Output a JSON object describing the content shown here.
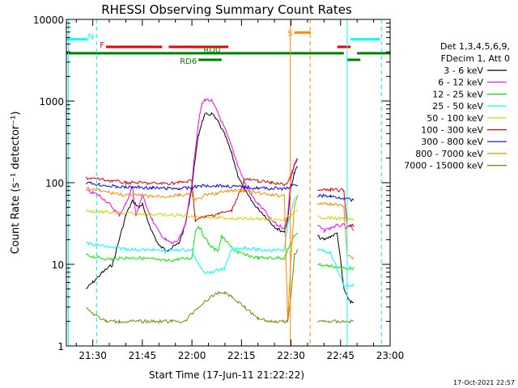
{
  "chart_data": {
    "type": "line",
    "title": "RHESSI Observing Summary Count Rates",
    "xlabel": "Start Time (17-Jun-11 21:22:22)",
    "ylabel": "Count Rate (s⁻¹ detector⁻¹)",
    "x_unit": "minutes after 21:00 UT",
    "xlim": [
      22,
      120
    ],
    "x_ticks": [
      {
        "x": 30,
        "label": "21:30"
      },
      {
        "x": 45,
        "label": "21:45"
      },
      {
        "x": 60,
        "label": "22:00"
      },
      {
        "x": 75,
        "label": "22:15"
      },
      {
        "x": 90,
        "label": "22:30"
      },
      {
        "x": 105,
        "label": "22:45"
      },
      {
        "x": 120,
        "label": "23:00"
      }
    ],
    "y_scale": "log",
    "ylim": [
      1,
      10000
    ],
    "y_ticks": [
      {
        "y": 1,
        "label": "1"
      },
      {
        "y": 10,
        "label": "10"
      },
      {
        "y": 100,
        "label": "100"
      },
      {
        "y": 1000,
        "label": "1000"
      },
      {
        "y": 10000,
        "label": "10000"
      }
    ],
    "legend_header": [
      "Det 1,3,4,5,6,9,",
      "FDecim 1, Att 0"
    ],
    "legend_position": "right",
    "footer_date": "17-Oct-2021 22:57",
    "series": [
      {
        "name": "3 - 6 keV",
        "color": "#000000",
        "points": [
          [
            28,
            5
          ],
          [
            30,
            6
          ],
          [
            33,
            8
          ],
          [
            36,
            10
          ],
          [
            38,
            20
          ],
          [
            40,
            40
          ],
          [
            42,
            60
          ],
          [
            44,
            50
          ],
          [
            45,
            55
          ],
          [
            46,
            40
          ],
          [
            48,
            25
          ],
          [
            50,
            17
          ],
          [
            52,
            15
          ],
          [
            54,
            16
          ],
          [
            56,
            18
          ],
          [
            58,
            30
          ],
          [
            60,
            90
          ],
          [
            61,
            200
          ],
          [
            62,
            380
          ],
          [
            63,
            550
          ],
          [
            64,
            680
          ],
          [
            66,
            700
          ],
          [
            68,
            550
          ],
          [
            70,
            380
          ],
          [
            72,
            230
          ],
          [
            74,
            120
          ],
          [
            76,
            80
          ],
          [
            78,
            60
          ],
          [
            80,
            48
          ],
          [
            82,
            40
          ],
          [
            84,
            32
          ],
          [
            86,
            27
          ],
          [
            88,
            25
          ],
          [
            89,
            35
          ],
          [
            90,
            90
          ],
          [
            91,
            130
          ],
          [
            92,
            160
          ],
          [
            98,
            22
          ],
          [
            100,
            20
          ],
          [
            102,
            22
          ],
          [
            104,
            24
          ],
          [
            106,
            5
          ],
          [
            107,
            4
          ],
          [
            108,
            3.5
          ],
          [
            109,
            3.3
          ]
        ]
      },
      {
        "name": "6 - 12 keV",
        "color": "#ff00ff",
        "points": [
          [
            28,
            80
          ],
          [
            30,
            75
          ],
          [
            32,
            70
          ],
          [
            35,
            55
          ],
          [
            38,
            40
          ],
          [
            40,
            55
          ],
          [
            42,
            90
          ],
          [
            43,
            40
          ],
          [
            45,
            70
          ],
          [
            48,
            35
          ],
          [
            50,
            25
          ],
          [
            52,
            20
          ],
          [
            54,
            18
          ],
          [
            56,
            20
          ],
          [
            58,
            30
          ],
          [
            60,
            100
          ],
          [
            61,
            250
          ],
          [
            62,
            550
          ],
          [
            63,
            900
          ],
          [
            64,
            1050
          ],
          [
            66,
            1000
          ],
          [
            68,
            700
          ],
          [
            70,
            450
          ],
          [
            72,
            280
          ],
          [
            74,
            160
          ],
          [
            76,
            100
          ],
          [
            78,
            70
          ],
          [
            80,
            55
          ],
          [
            82,
            45
          ],
          [
            84,
            35
          ],
          [
            86,
            30
          ],
          [
            88,
            28
          ],
          [
            89,
            40
          ],
          [
            90,
            120
          ],
          [
            91,
            170
          ],
          [
            92,
            190
          ],
          [
            98,
            30
          ],
          [
            100,
            26
          ],
          [
            102,
            28
          ],
          [
            104,
            30
          ],
          [
            106,
            30
          ],
          [
            107,
            28
          ],
          [
            108,
            30
          ],
          [
            109,
            25
          ]
        ]
      },
      {
        "name": "12 - 25 keV",
        "color": "#00ee00",
        "points": [
          [
            28,
            13
          ],
          [
            32,
            12
          ],
          [
            36,
            11.5
          ],
          [
            40,
            12
          ],
          [
            44,
            12
          ],
          [
            48,
            11.5
          ],
          [
            52,
            11
          ],
          [
            56,
            11.5
          ],
          [
            60,
            12
          ],
          [
            61,
            25
          ],
          [
            62,
            30
          ],
          [
            63,
            25
          ],
          [
            65,
            18
          ],
          [
            67,
            15
          ],
          [
            68,
            15
          ],
          [
            69,
            22
          ],
          [
            70,
            20
          ],
          [
            72,
            16
          ],
          [
            74,
            14
          ],
          [
            76,
            13
          ],
          [
            80,
            12
          ],
          [
            84,
            12
          ],
          [
            88,
            12
          ],
          [
            89,
            15
          ],
          [
            90,
            18
          ],
          [
            91,
            22
          ],
          [
            92,
            25
          ],
          [
            98,
            10
          ],
          [
            102,
            9.5
          ],
          [
            106,
            9
          ],
          [
            109,
            9
          ]
        ]
      },
      {
        "name": "25 - 50 keV",
        "color": "#00ffff",
        "points": [
          [
            28,
            18
          ],
          [
            32,
            17
          ],
          [
            36,
            16
          ],
          [
            40,
            15.5
          ],
          [
            44,
            15
          ],
          [
            48,
            15
          ],
          [
            52,
            14.5
          ],
          [
            56,
            15
          ],
          [
            60,
            15
          ],
          [
            61,
            12
          ],
          [
            62,
            10
          ],
          [
            63,
            9
          ],
          [
            64,
            8
          ],
          [
            66,
            8
          ],
          [
            68,
            8.5
          ],
          [
            70,
            9
          ],
          [
            72,
            15
          ],
          [
            76,
            16
          ],
          [
            80,
            15
          ],
          [
            84,
            15
          ],
          [
            88,
            15
          ],
          [
            89,
            30
          ],
          [
            90,
            45
          ],
          [
            91,
            60
          ],
          [
            92,
            70
          ],
          [
            98,
            15
          ],
          [
            102,
            14
          ],
          [
            106,
            5.5
          ],
          [
            109,
            5.5
          ]
        ]
      },
      {
        "name": "50 - 100 keV",
        "color": "#d4d400",
        "points": [
          [
            28,
            45
          ],
          [
            32,
            44
          ],
          [
            36,
            43
          ],
          [
            40,
            42
          ],
          [
            44,
            42
          ],
          [
            48,
            41
          ],
          [
            52,
            40
          ],
          [
            56,
            40
          ],
          [
            60,
            39
          ],
          [
            64,
            38
          ],
          [
            68,
            37
          ],
          [
            72,
            37
          ],
          [
            76,
            36
          ],
          [
            80,
            36
          ],
          [
            84,
            35
          ],
          [
            88,
            35
          ],
          [
            90,
            40
          ],
          [
            92,
            45
          ],
          [
            98,
            38
          ],
          [
            102,
            37
          ],
          [
            106,
            36
          ],
          [
            109,
            35
          ]
        ]
      },
      {
        "name": "100 - 300 keV",
        "color": "#dd0000",
        "points": [
          [
            28,
            115
          ],
          [
            32,
            110
          ],
          [
            36,
            105
          ],
          [
            40,
            100
          ],
          [
            44,
            100
          ],
          [
            48,
            98
          ],
          [
            52,
            98
          ],
          [
            56,
            100
          ],
          [
            60,
            105
          ],
          [
            61,
            35
          ],
          [
            64,
            38
          ],
          [
            68,
            42
          ],
          [
            72,
            45
          ],
          [
            76,
            110
          ],
          [
            80,
            105
          ],
          [
            84,
            100
          ],
          [
            88,
            95
          ],
          [
            89,
            100
          ],
          [
            90,
            120
          ],
          [
            91,
            160
          ],
          [
            92,
            200
          ],
          [
            98,
            80
          ],
          [
            102,
            82
          ],
          [
            106,
            80
          ],
          [
            107,
            30
          ],
          [
            109,
            30
          ]
        ]
      },
      {
        "name": "300 - 800 keV",
        "color": "#0000ee",
        "points": [
          [
            28,
            100
          ],
          [
            32,
            95
          ],
          [
            36,
            90
          ],
          [
            40,
            88
          ],
          [
            44,
            88
          ],
          [
            48,
            86
          ],
          [
            52,
            85
          ],
          [
            56,
            85
          ],
          [
            60,
            86
          ],
          [
            61,
            90
          ],
          [
            64,
            92
          ],
          [
            68,
            92
          ],
          [
            72,
            90
          ],
          [
            76,
            88
          ],
          [
            80,
            86
          ],
          [
            84,
            85
          ],
          [
            88,
            84
          ],
          [
            90,
            90
          ],
          [
            92,
            95
          ],
          [
            98,
            70
          ],
          [
            102,
            68
          ],
          [
            106,
            65
          ],
          [
            109,
            60
          ]
        ]
      },
      {
        "name": "800 - 7000 keV",
        "color": "#ff8800",
        "points": [
          [
            28,
            85
          ],
          [
            32,
            80
          ],
          [
            36,
            75
          ],
          [
            40,
            70
          ],
          [
            44,
            70
          ],
          [
            48,
            68
          ],
          [
            52,
            68
          ],
          [
            56,
            70
          ],
          [
            60,
            72
          ],
          [
            61,
            60
          ],
          [
            64,
            70
          ],
          [
            68,
            75
          ],
          [
            72,
            80
          ],
          [
            76,
            80
          ],
          [
            80,
            75
          ],
          [
            84,
            70
          ],
          [
            88,
            70
          ],
          [
            89,
            2
          ],
          [
            90,
            12
          ],
          [
            91,
            50
          ],
          [
            92,
            70
          ],
          [
            98,
            55
          ],
          [
            102,
            55
          ],
          [
            106,
            52
          ],
          [
            107,
            13
          ],
          [
            109,
            12
          ]
        ]
      },
      {
        "name": "7000 - 15000 keV",
        "color": "#808000",
        "points": [
          [
            28,
            3
          ],
          [
            30,
            2.5
          ],
          [
            34,
            2
          ],
          [
            38,
            2
          ],
          [
            42,
            2
          ],
          [
            46,
            2
          ],
          [
            50,
            2
          ],
          [
            54,
            2
          ],
          [
            58,
            2
          ],
          [
            60,
            2.5
          ],
          [
            62,
            3
          ],
          [
            64,
            3.5
          ],
          [
            66,
            4
          ],
          [
            68,
            4.5
          ],
          [
            70,
            4.5
          ],
          [
            72,
            4
          ],
          [
            74,
            3.5
          ],
          [
            76,
            3
          ],
          [
            78,
            2.5
          ],
          [
            80,
            2.2
          ],
          [
            84,
            2
          ],
          [
            88,
            2
          ],
          [
            89,
            2
          ],
          [
            90,
            4
          ],
          [
            91,
            13
          ],
          [
            92,
            15
          ],
          [
            98,
            2
          ],
          [
            102,
            2
          ],
          [
            106,
            2
          ],
          [
            109,
            2
          ]
        ]
      }
    ],
    "flag_bars": [
      {
        "label": "N",
        "label_color": "#00ffff",
        "color": "#00ffff",
        "y": 5700,
        "segments": [
          [
            22,
            28.5
          ],
          [
            108,
            117
          ]
        ]
      },
      {
        "label": "F",
        "label_color": "#ff0000",
        "color": "#ee0000",
        "y": 4600,
        "segments": [
          [
            34,
            51
          ],
          [
            53,
            71
          ],
          [
            104,
            108
          ]
        ]
      },
      {
        "label": "S",
        "label_color": "#ff8800",
        "color": "#ff8800",
        "y": 6900,
        "segments": [
          [
            91,
            96
          ]
        ]
      },
      {
        "label": "RD0",
        "label_color": "#008000",
        "color": "#008000",
        "y": 3850,
        "segments": [
          [
            22,
            106
          ],
          [
            110,
            120
          ]
        ]
      },
      {
        "label": "RD6",
        "label_color": "#008000",
        "color": "#008000",
        "y": 3200,
        "segments": [
          [
            62,
            69
          ],
          [
            107,
            111
          ]
        ]
      }
    ],
    "vertical_markers": [
      {
        "x": 22.6,
        "color": "#00ffff",
        "style": "solid"
      },
      {
        "x": 31.2,
        "color": "#00ffff",
        "style": "dashed"
      },
      {
        "x": 89.8,
        "color": "#ff8800",
        "style": "solid"
      },
      {
        "x": 95.8,
        "color": "#ff8800",
        "style": "dashed"
      },
      {
        "x": 107.0,
        "color": "#00ffff",
        "style": "solid"
      },
      {
        "x": 117.4,
        "color": "#00ffff",
        "style": "dashed"
      }
    ]
  }
}
